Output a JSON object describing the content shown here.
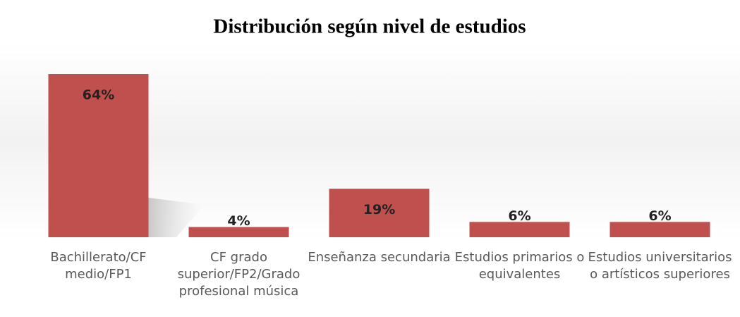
{
  "chart_data": {
    "type": "bar",
    "title": "Distribución según nivel de estudios",
    "categories": [
      "Bachillerato/CF medio/FP1",
      "CF grado superior/FP2/Grado profesional música",
      "Enseñanza secundaria",
      "Estudios primarios o equivalentes",
      "Estudios universitarios o artísticos superiores"
    ],
    "values": [
      64,
      4,
      19,
      6,
      6
    ],
    "value_labels": [
      "64%",
      "4%",
      "19%",
      "6%",
      "6%"
    ],
    "color": "#c0504d"
  }
}
